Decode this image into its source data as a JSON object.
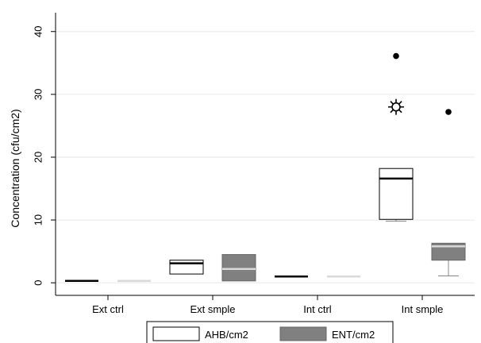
{
  "chart_data": {
    "type": "box",
    "ylabel": "Concentration (cfu/cm2)",
    "xlabel": "",
    "ylim": [
      -2,
      43
    ],
    "yticks": [
      0,
      10,
      20,
      30,
      40
    ],
    "grid": true,
    "legend_position": "bottom",
    "categories": [
      "Ext ctrl",
      "Ext smple",
      "Int ctrl",
      "Int smple"
    ],
    "series": [
      {
        "name": "AHB/cm2",
        "fill": "#ffffff",
        "median_color": "#000000",
        "boxes": [
          {
            "category": "Ext ctrl",
            "min": 0.3,
            "q1": 0.3,
            "median": 0.3,
            "q3": 0.3,
            "max": 0.3,
            "outliers": []
          },
          {
            "category": "Ext smple",
            "min": 1.4,
            "q1": 1.4,
            "median": 3.1,
            "q3": 3.6,
            "max": 3.6,
            "outliers": []
          },
          {
            "category": "Int ctrl",
            "min": 1.0,
            "q1": 1.0,
            "median": 1.0,
            "q3": 1.0,
            "max": 1.0,
            "outliers": []
          },
          {
            "category": "Int smple",
            "min": 9.8,
            "q1": 10.1,
            "median": 16.6,
            "q3": 18.2,
            "max": 18.2,
            "outliers": [
              {
                "value": 36.1,
                "marker": "dot"
              },
              {
                "value": 28.0,
                "marker": "sun"
              }
            ]
          }
        ]
      },
      {
        "name": "ENT/cm2",
        "fill": "#808080",
        "median_color": "#d9d9d9",
        "boxes": [
          {
            "category": "Ext ctrl",
            "min": 0.3,
            "q1": 0.3,
            "median": 0.3,
            "q3": 0.3,
            "max": 0.3,
            "outliers": []
          },
          {
            "category": "Ext smple",
            "min": 0.3,
            "q1": 0.3,
            "median": 2.2,
            "q3": 4.5,
            "max": 4.5,
            "outliers": []
          },
          {
            "category": "Int ctrl",
            "min": 1.0,
            "q1": 1.0,
            "median": 1.0,
            "q3": 1.0,
            "max": 1.0,
            "outliers": []
          },
          {
            "category": "Int smple",
            "min": 1.1,
            "q1": 3.6,
            "median": 5.8,
            "q3": 6.3,
            "max": 6.3,
            "outliers": [
              {
                "value": 27.2,
                "marker": "dot"
              }
            ]
          }
        ]
      }
    ]
  }
}
